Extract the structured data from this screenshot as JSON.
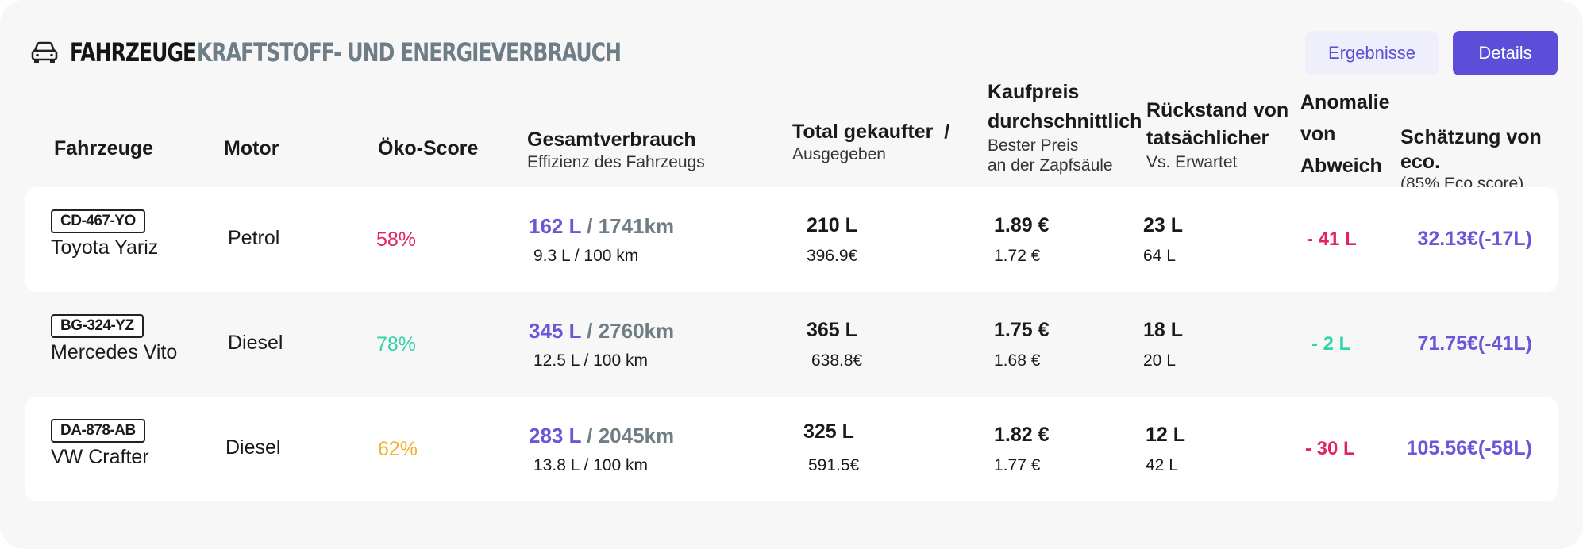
{
  "header": {
    "icon": "car-icon",
    "title": "FAHRZEUGE",
    "subtitle": "KRAFTSTOFF- UND ENERGIEVERBRAUCH",
    "buttons": {
      "results": "Ergebnisse",
      "details": "Details"
    }
  },
  "columns": {
    "vehicles": "Fahrzeuge",
    "motor": "Motor",
    "eco_score": "Öko-Score",
    "consumption": {
      "title": "Gesamtverbrauch",
      "sub": "Effizienz des Fahrzeugs"
    },
    "purchased": {
      "title": "Total gekaufter  /",
      "sub": "Ausgegeben"
    },
    "price": {
      "line1": "Kaufpreis",
      "line2": "durchschnittlich",
      "sub1": "Bester Preis",
      "sub2": "an der Zapfsäule"
    },
    "backlog": {
      "line1": "Rückstand von",
      "line2": "tatsächlicher",
      "sub": "Vs. Erwartet"
    },
    "anomaly": {
      "line1": "Anomalie",
      "line2": "von",
      "line3": "Abweich"
    },
    "estimate": {
      "title": "Schätzung von eco.",
      "sub": "(85% Eco score)"
    }
  },
  "rows": [
    {
      "plate": "CD-467-YO",
      "model": "Toyota Yariz",
      "motor": "Petrol",
      "eco_score": "58%",
      "eco_color": "#e0245e",
      "liters": "162 L",
      "sep": " / ",
      "km": "1741km",
      "efficiency": "9.3 L / 100 km",
      "purchased": "210 L",
      "spent": "396.9€",
      "avg_price": "1.89 €",
      "best_price": "1.72 €",
      "backlog": "23 L",
      "expected": "64 L",
      "anomaly": "- 41 L",
      "anomaly_color": "#e0245e",
      "estimate": "32.13€(-17L)"
    },
    {
      "plate": "BG-324-YZ",
      "model": "Mercedes Vito",
      "motor": "Diesel",
      "eco_score": "78%",
      "eco_color": "#2fd4a8",
      "liters": "345 L",
      "sep": " / ",
      "km": "2760km",
      "efficiency": "12.5 L / 100 km",
      "purchased": "365 L",
      "spent": "638.8€",
      "avg_price": "1.75 €",
      "best_price": "1.68 €",
      "backlog": "18 L",
      "expected": "20 L",
      "anomaly": "- 2 L",
      "anomaly_color": "#2fd4a8",
      "estimate": "71.75€(-41L)"
    },
    {
      "plate": "DA-878-AB",
      "model": "VW Crafter",
      "motor": "Diesel",
      "eco_score": "62%",
      "eco_color": "#f2b233",
      "liters": "283 L",
      "sep": " / ",
      "km": "2045km",
      "efficiency": "13.8 L / 100 km",
      "purchased": "325 L",
      "spent": "591.5€",
      "avg_price": "1.82 €",
      "best_price": "1.77 €",
      "backlog": "12 L",
      "expected": "42 L",
      "anomaly": "- 30 L",
      "anomaly_color": "#e0245e",
      "estimate": "105.56€(-58L)"
    }
  ]
}
